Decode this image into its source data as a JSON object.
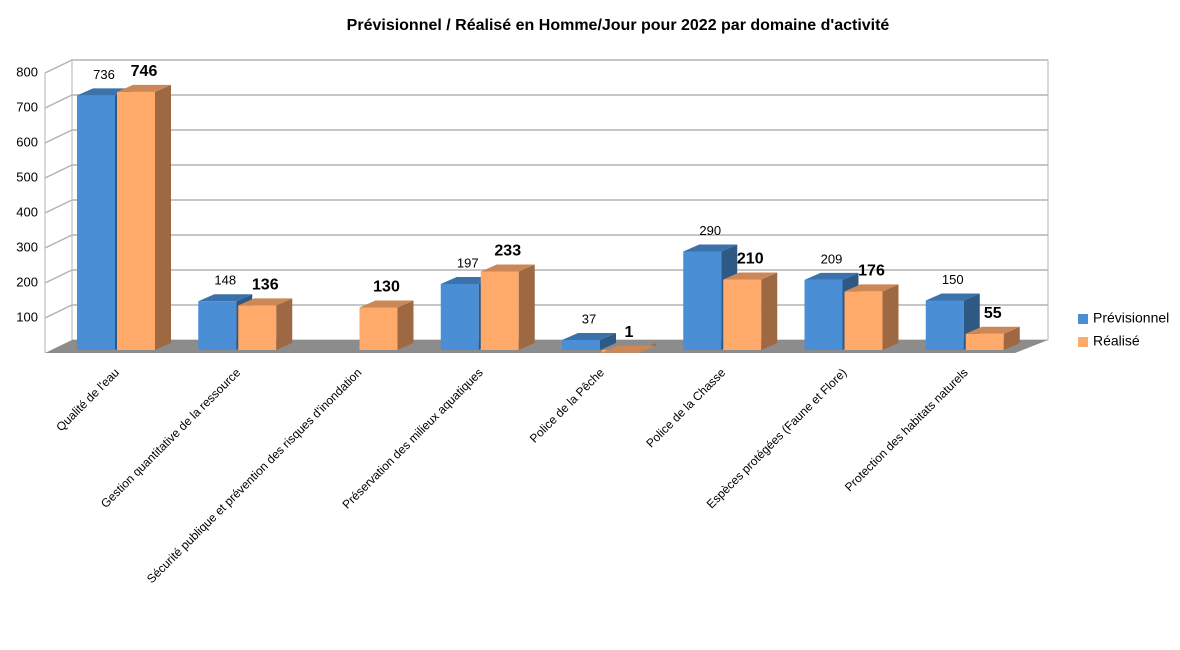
{
  "chart_data": {
    "type": "bar3d",
    "title": "Prévisionnel / Réalisé en Homme/Jour pour 2022 par domaine d'activité",
    "categories": [
      "Qualité de l'eau",
      "Gestion quantitative de la ressource",
      "Sécurité publique et prévention des risques d'inondation",
      "Préservation des milieux aquatiques",
      "Police de la Pêche",
      "Police de la Chasse",
      "Espèces protégées (Faune et Flore)",
      "Protection des habitats naturels"
    ],
    "series": [
      {
        "name": "Prévisionnel",
        "color": "#4a8fd6",
        "values": [
          736,
          148,
          null,
          197,
          37,
          290,
          209,
          150
        ]
      },
      {
        "name": "Réalisé",
        "color": "#ffa96b",
        "values": [
          746,
          136,
          130,
          233,
          1,
          210,
          176,
          55
        ]
      }
    ],
    "ylim": [
      0,
      800
    ],
    "yticks": [
      100,
      200,
      300,
      400,
      500,
      600,
      700,
      800
    ],
    "grid": true,
    "legend": "right"
  }
}
